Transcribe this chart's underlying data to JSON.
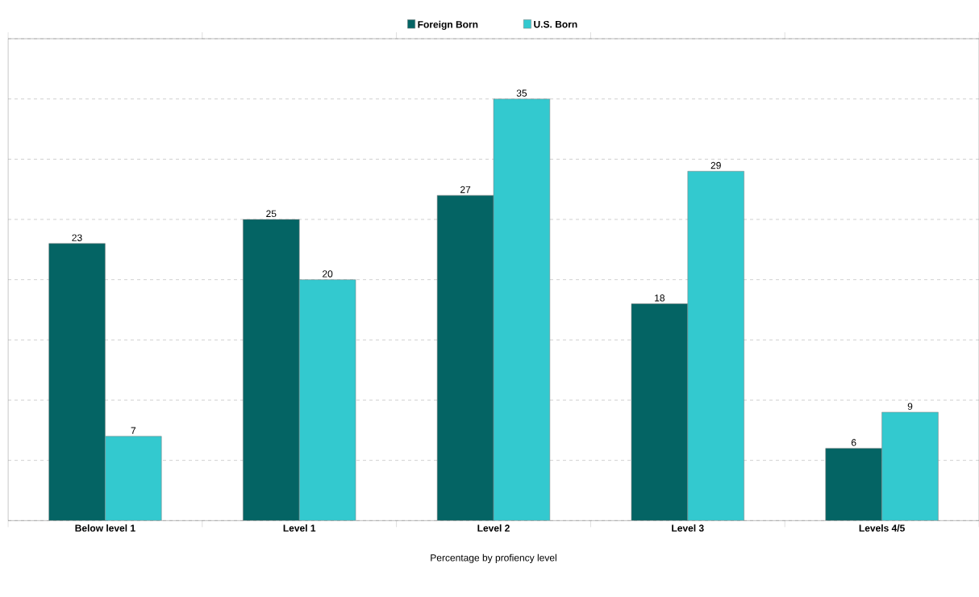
{
  "chart_data": {
    "type": "bar",
    "xlabel": "Percentage by profiency level",
    "categories": [
      "Below level 1",
      "Level 1",
      "Level 2",
      "Level 3",
      "Levels 4/5"
    ],
    "series": [
      {
        "name": "Foreign Born",
        "color": "#046464",
        "values": [
          23,
          25,
          27,
          18,
          6
        ]
      },
      {
        "name": "U.S. Born",
        "color": "#33c9cf",
        "values": [
          7,
          20,
          35,
          29,
          9
        ]
      }
    ],
    "ylim": [
      0,
      40
    ],
    "yticks": [
      {
        "value": 0,
        "label": null
      },
      {
        "value": 5,
        "label": null
      },
      {
        "value": 10,
        "label": null
      },
      {
        "value": 15,
        "label": null
      },
      {
        "value": 20,
        "label": null
      },
      {
        "value": 25,
        "label": null
      },
      {
        "value": 30,
        "label": null
      },
      {
        "value": 35,
        "label": null
      },
      {
        "value": 40,
        "label": null
      }
    ],
    "grid": "y",
    "legend": "top",
    "data_labels": true,
    "tick_labels": "x"
  }
}
